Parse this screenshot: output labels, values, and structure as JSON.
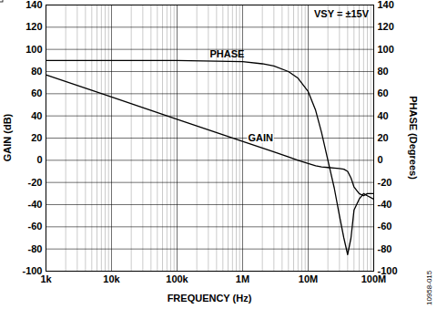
{
  "chart_data": {
    "type": "line",
    "x_label": "FREQUENCY (Hz)",
    "y_label": "GAIN (dB)",
    "y2_label": "PHASE (Degrees)",
    "annotations": [
      "PHASE",
      "GAIN",
      "VSY = ±15V",
      "10958-015"
    ],
    "log": "x",
    "grid": true,
    "x": [
      1000,
      10000,
      100000,
      1000000,
      2000000,
      3000000,
      5000000,
      7000000,
      10000000,
      13000000,
      16000000,
      20000000,
      25000000,
      30000000,
      35000000,
      40000000,
      45000000,
      50000000,
      60000000,
      70000000,
      80000000,
      100000000
    ],
    "series": [
      {
        "name": "GAIN",
        "color": "#000000",
        "values": [
          77,
          57,
          37,
          17,
          11,
          7.5,
          3,
          0,
          -3,
          -5,
          -6,
          -6.5,
          -7,
          -7.5,
          -8,
          -10,
          -16,
          -24,
          -30,
          -32,
          -30,
          -30
        ]
      },
      {
        "name": "PHASE",
        "color": "#000000",
        "axis": "y2",
        "values": [
          90,
          90,
          90,
          89,
          87,
          85,
          80,
          74,
          62,
          45,
          25,
          0,
          -25,
          -50,
          -70,
          -85,
          -70,
          -45,
          -35,
          -30,
          -32,
          -35
        ]
      }
    ],
    "xlim": [
      1000,
      100000000
    ],
    "xticks": [
      {
        "value": 1000,
        "label": "1k"
      },
      {
        "value": 10000,
        "label": "10k"
      },
      {
        "value": 100000,
        "label": "100k"
      },
      {
        "value": 1000000,
        "label": "1M"
      },
      {
        "value": 10000000,
        "label": "10M"
      },
      {
        "value": 100000000,
        "label": "100M"
      }
    ],
    "ylim": [
      -100,
      140
    ],
    "yticks": [
      -100,
      -80,
      -60,
      -40,
      -20,
      0,
      20,
      40,
      60,
      80,
      100,
      120,
      140
    ],
    "y2lim": [
      -100,
      140
    ],
    "y2ticks": [
      -100,
      -80,
      -60,
      -40,
      -20,
      0,
      20,
      40,
      60,
      80,
      100,
      120,
      140
    ]
  }
}
